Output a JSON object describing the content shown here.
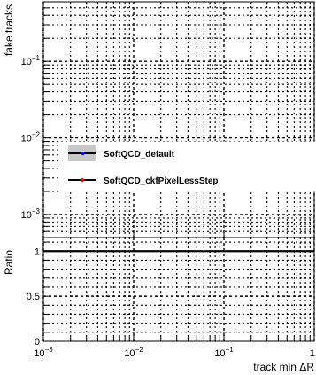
{
  "chart_data": [
    {
      "type": "line",
      "panel": "main",
      "ylabel": "fake tracks",
      "yscale": "log",
      "ylim": [
        0.0005,
        0.6
      ],
      "xscale": "log",
      "xlim": [
        0.001,
        1
      ],
      "y_ticks": [
        {
          "value": 0.001,
          "base": "10",
          "exp": "−3"
        },
        {
          "value": 0.01,
          "base": "10",
          "exp": "−2"
        },
        {
          "value": 0.1,
          "base": "10",
          "exp": "−1"
        }
      ],
      "grid": true,
      "legend": {
        "placement": "center-left",
        "entries": [
          {
            "label": "SoftQCD_default",
            "color": "#0000ff",
            "band_color": "#c8c8c8"
          },
          {
            "label": "SoftQCD_ckfPixelLessStep",
            "color": "#ff0000"
          }
        ]
      },
      "series": []
    },
    {
      "type": "line",
      "panel": "ratio",
      "ylabel": "Ratio",
      "xlabel": "track min ΔR",
      "xscale": "log",
      "xlim": [
        0.001,
        1
      ],
      "ylim": [
        0,
        1.15
      ],
      "reference_line": 1.0,
      "y_ticks": [
        {
          "value": 0,
          "label": "0"
        },
        {
          "value": 0.5,
          "label": "0.5"
        },
        {
          "value": 1,
          "label": "1"
        }
      ],
      "x_ticks": [
        {
          "value": 0.001,
          "base": "10",
          "exp": "−3"
        },
        {
          "value": 0.01,
          "base": "10",
          "exp": "−2"
        },
        {
          "value": 0.1,
          "base": "10",
          "exp": "−1"
        },
        {
          "value": 1,
          "base": "1",
          "exp": ""
        }
      ],
      "grid": true,
      "series": []
    }
  ]
}
